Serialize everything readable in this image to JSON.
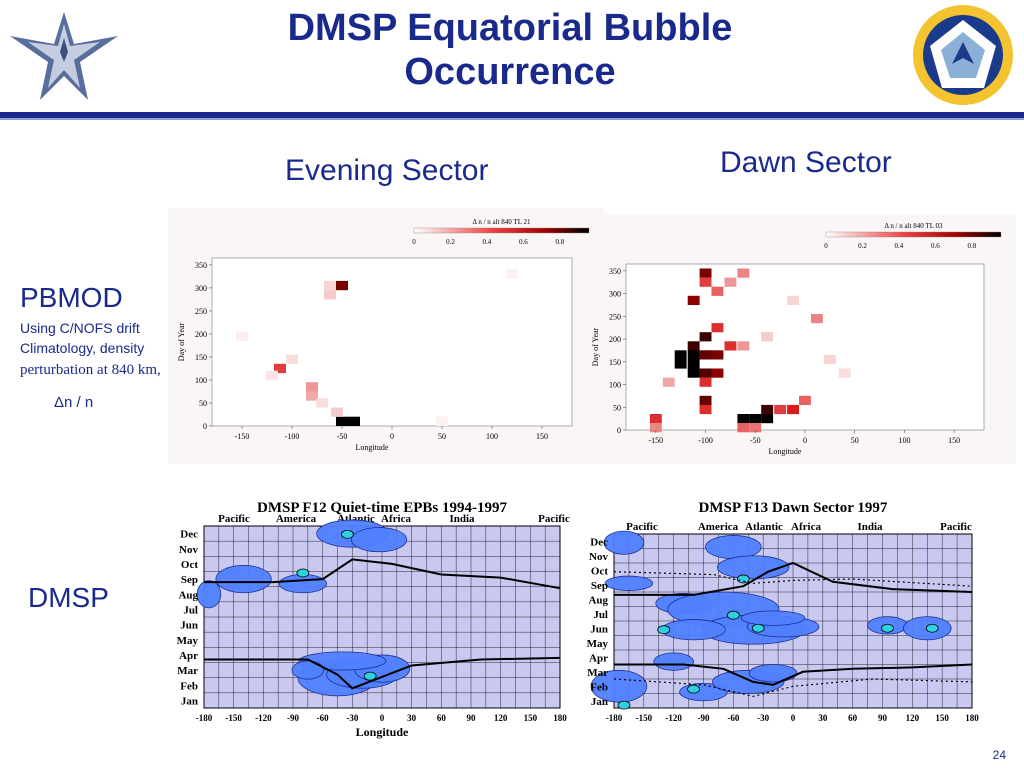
{
  "title_line1": "DMSP Equatorial Bubble",
  "title_line2": "Occurrence",
  "evening_sector": "Evening Sector",
  "dawn_sector": "Dawn Sector",
  "pbmod_label": "PBMOD",
  "pbmod_desc1": "Using C/NOFS drift",
  "pbmod_desc2": "Climatology, density",
  "pbmod_desc3": "perturbation at 840 km,",
  "pbmod_desc4": "Δn / n",
  "dmsp_label": "DMSP",
  "slide_number": "24",
  "colors": {
    "title_blue": "#1a2a8c",
    "heat_red": "#d01010",
    "heat_black": "#000000",
    "contour_bg": "#c8c8f0",
    "contour_blue": "#5080ff"
  },
  "icons": [
    "air-force-wings-logo",
    "afrl-seal-logo"
  ],
  "chart_data": [
    {
      "type": "heatmap",
      "title": "Δ n / n alt 840 TL 21",
      "colorbar_ticks": [
        "0",
        "0.2",
        "0.4",
        "0.6",
        "0.8"
      ],
      "xlabel": "Longitude",
      "ylabel": "Day of Year",
      "xticks": [
        "-150",
        "-100",
        "-50",
        "0",
        "50",
        "100",
        "150"
      ],
      "yticks": [
        "0",
        "50",
        "100",
        "150",
        "200",
        "250",
        "300",
        "350"
      ],
      "xlim": [
        -180,
        180
      ],
      "ylim": [
        0,
        365
      ],
      "cells": [
        {
          "lon": -50,
          "day": 305,
          "v": 0.75
        },
        {
          "lon": -112,
          "day": 125,
          "v": 0.55
        },
        {
          "lon": -50,
          "day": 10,
          "v": 1.0
        },
        {
          "lon": -38,
          "day": 10,
          "v": 1.0
        },
        {
          "lon": -80,
          "day": 85,
          "v": 0.3
        },
        {
          "lon": -80,
          "day": 65,
          "v": 0.25
        },
        {
          "lon": -62,
          "day": 285,
          "v": 0.15
        },
        {
          "lon": -62,
          "day": 305,
          "v": 0.12
        },
        {
          "lon": -100,
          "day": 145,
          "v": 0.1
        },
        {
          "lon": -120,
          "day": 110,
          "v": 0.08
        },
        {
          "lon": -150,
          "day": 195,
          "v": 0.05
        },
        {
          "lon": -70,
          "day": 50,
          "v": 0.1
        },
        {
          "lon": -55,
          "day": 30,
          "v": 0.15
        },
        {
          "lon": 50,
          "day": 10,
          "v": 0.04
        },
        {
          "lon": 120,
          "day": 330,
          "v": 0.04
        }
      ]
    },
    {
      "type": "heatmap",
      "title": "Δ n / n alt 840 TL 03",
      "colorbar_ticks": [
        "0",
        "0.2",
        "0.4",
        "0.6",
        "0.8"
      ],
      "xlabel": "Longitude",
      "ylabel": "Day of Year",
      "xticks": [
        "-150",
        "-100",
        "-50",
        "0",
        "50",
        "100",
        "150"
      ],
      "yticks": [
        "0",
        "50",
        "100",
        "150",
        "200",
        "250",
        "300",
        "350"
      ],
      "xlim": [
        -180,
        180
      ],
      "ylim": [
        0,
        365
      ],
      "cells": [
        {
          "lon": -125,
          "day": 145,
          "v": 1.0
        },
        {
          "lon": -112,
          "day": 145,
          "v": 1.0
        },
        {
          "lon": -125,
          "day": 165,
          "v": 1.0
        },
        {
          "lon": -112,
          "day": 165,
          "v": 1.0
        },
        {
          "lon": -112,
          "day": 125,
          "v": 1.0
        },
        {
          "lon": -100,
          "day": 125,
          "v": 0.85
        },
        {
          "lon": -112,
          "day": 185,
          "v": 0.9
        },
        {
          "lon": -100,
          "day": 205,
          "v": 0.9
        },
        {
          "lon": -100,
          "day": 165,
          "v": 0.8
        },
        {
          "lon": -88,
          "day": 165,
          "v": 0.75
        },
        {
          "lon": -88,
          "day": 125,
          "v": 0.7
        },
        {
          "lon": -75,
          "day": 185,
          "v": 0.6
        },
        {
          "lon": -100,
          "day": 105,
          "v": 0.6
        },
        {
          "lon": -88,
          "day": 225,
          "v": 0.6
        },
        {
          "lon": -112,
          "day": 285,
          "v": 0.7
        },
        {
          "lon": -100,
          "day": 345,
          "v": 0.75
        },
        {
          "lon": -100,
          "day": 325,
          "v": 0.55
        },
        {
          "lon": -88,
          "day": 305,
          "v": 0.45
        },
        {
          "lon": -62,
          "day": 345,
          "v": 0.35
        },
        {
          "lon": -75,
          "day": 325,
          "v": 0.3
        },
        {
          "lon": -100,
          "day": 65,
          "v": 0.8
        },
        {
          "lon": -100,
          "day": 45,
          "v": 0.6
        },
        {
          "lon": -62,
          "day": 25,
          "v": 1.0
        },
        {
          "lon": -50,
          "day": 25,
          "v": 1.0
        },
        {
          "lon": -38,
          "day": 25,
          "v": 1.0
        },
        {
          "lon": -62,
          "day": 5,
          "v": 0.45
        },
        {
          "lon": -50,
          "day": 5,
          "v": 0.4
        },
        {
          "lon": -150,
          "day": 25,
          "v": 0.6
        },
        {
          "lon": -150,
          "day": 5,
          "v": 0.35
        },
        {
          "lon": -25,
          "day": 45,
          "v": 0.55
        },
        {
          "lon": -38,
          "day": 45,
          "v": 0.9
        },
        {
          "lon": -12,
          "day": 45,
          "v": 0.65
        },
        {
          "lon": 0,
          "day": 65,
          "v": 0.45
        },
        {
          "lon": -62,
          "day": 185,
          "v": 0.3
        },
        {
          "lon": 12,
          "day": 245,
          "v": 0.35
        },
        {
          "lon": -38,
          "day": 205,
          "v": 0.15
        },
        {
          "lon": 25,
          "day": 155,
          "v": 0.12
        },
        {
          "lon": 40,
          "day": 125,
          "v": 0.1
        },
        {
          "lon": -12,
          "day": 285,
          "v": 0.12
        },
        {
          "lon": -137,
          "day": 105,
          "v": 0.25
        }
      ]
    },
    {
      "type": "contour",
      "title": "DMSP F12  Quiet-time EPBs  1994-1997",
      "region_labels": [
        "Pacific",
        "America",
        "Atlantic",
        "Africa",
        "India",
        "Pacific"
      ],
      "months": [
        "Dec",
        "Nov",
        "Oct",
        "Sep",
        "Aug",
        "Jul",
        "Jun",
        "May",
        "Apr",
        "Mar",
        "Feb",
        "Jan"
      ],
      "xticks": [
        "-180",
        "-150",
        "-120",
        "-90",
        "-60",
        "-30",
        "0",
        "30",
        "60",
        "90",
        "120",
        "150",
        "180"
      ],
      "xlabel": "Longitude"
    },
    {
      "type": "contour",
      "title": "DMSP F13  Dawn Sector  1997",
      "region_labels": [
        "Pacific",
        "America",
        "Atlantic",
        "Africa",
        "India",
        "Pacific"
      ],
      "months": [
        "Dec",
        "Nov",
        "Oct",
        "Sep",
        "Aug",
        "Jul",
        "Jun",
        "May",
        "Apr",
        "Mar",
        "Feb",
        "Jan"
      ],
      "xticks": [
        "-180",
        "-150",
        "-120",
        "-90",
        "-60",
        "-30",
        "0",
        "30",
        "60",
        "90",
        "120",
        "150",
        "180"
      ],
      "xlabel": ""
    }
  ]
}
